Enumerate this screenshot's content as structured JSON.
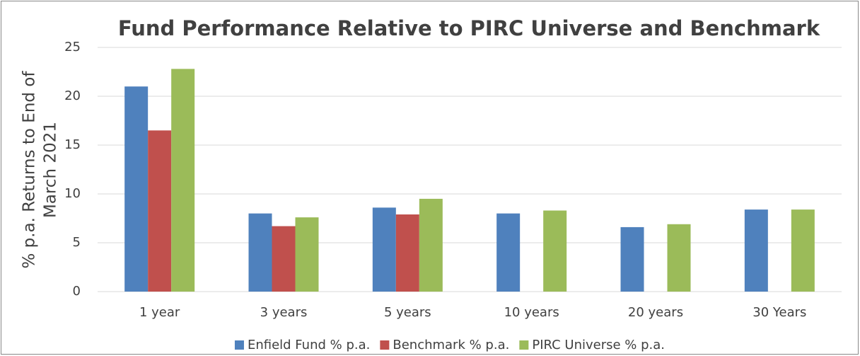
{
  "chart_data": {
    "type": "bar",
    "title": "Fund Performance Relative to PIRC Universe and Benchmark",
    "ylabel": [
      "% p.a. Returns to End of",
      "March 2021"
    ],
    "categories": [
      "1 year",
      "3 years",
      "5 years",
      "10 years",
      "20 years",
      "30 Years"
    ],
    "series": [
      {
        "name": "Enfield Fund % p.a.",
        "color": "#4f81bd",
        "values": [
          21.0,
          8.0,
          8.6,
          8.0,
          6.6,
          8.4
        ]
      },
      {
        "name": "Benchmark % p.a.",
        "color": "#c0504d",
        "values": [
          16.5,
          6.7,
          7.9,
          null,
          null,
          null
        ]
      },
      {
        "name": "PIRC Universe % p.a.",
        "color": "#9bbb59",
        "values": [
          22.8,
          7.6,
          9.5,
          8.3,
          6.9,
          8.4
        ]
      }
    ],
    "ylim": [
      0,
      25
    ],
    "yticks": [
      0,
      5,
      10,
      15,
      20,
      25
    ],
    "grid": true,
    "legend": "bottom"
  }
}
